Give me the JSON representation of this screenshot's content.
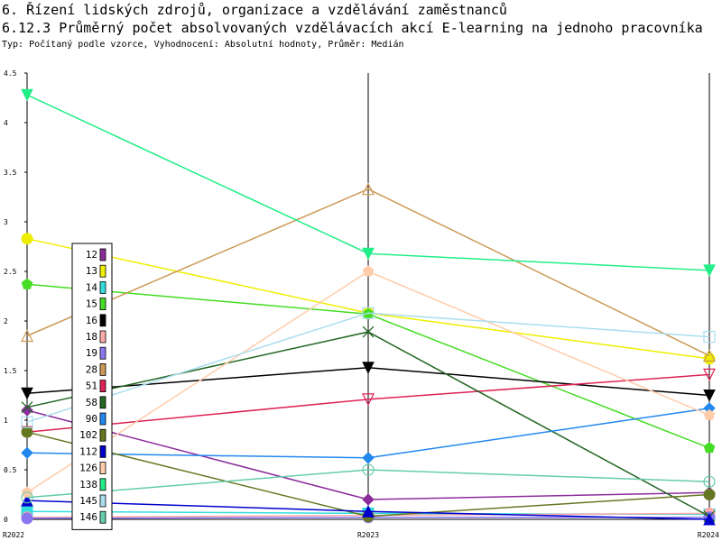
{
  "header": {
    "title1": "6. Řízení lidských zdrojů, organizace a vzdělávání zaměstnanců",
    "title2": "6.12.3 Průměrný počet absolvovaných vzdělávacích akcí E-learning na jednoho pracovníka",
    "subtitle": "Typ: Počítaný podle vzorce, Vyhodnocení: Absolutní hodnoty, Průměr: Medián"
  },
  "chart_data": {
    "type": "line",
    "categories": [
      "R2022",
      "R2023",
      "R2024"
    ],
    "ylim": [
      0,
      4.5
    ],
    "yticks": [
      "0",
      "0.5",
      "1",
      "1.5",
      "2",
      "2.5",
      "3",
      "3.5",
      "4",
      "4.5"
    ],
    "grid": false,
    "legend_position": "left-inside",
    "series": [
      {
        "name": "12",
        "color": "#8B2D9B",
        "marker": "diamond",
        "values": [
          1.1,
          0.2,
          0.27
        ]
      },
      {
        "name": "13",
        "color": "#EEEE00",
        "marker": "circle",
        "values": [
          2.83,
          2.08,
          1.62
        ]
      },
      {
        "name": "14",
        "color": "#33DDDD",
        "marker": "square",
        "values": [
          0.08,
          0.06,
          0.05
        ]
      },
      {
        "name": "15",
        "color": "#44DD22",
        "marker": "pentagon",
        "values": [
          2.37,
          2.07,
          0.72
        ]
      },
      {
        "name": "16",
        "color": "#000000",
        "marker": "triangle-down",
        "values": [
          1.27,
          1.53,
          1.25
        ]
      },
      {
        "name": "18",
        "color": "#FFAAAA",
        "marker": "circle",
        "values": [
          0.02,
          0.04,
          0.06
        ]
      },
      {
        "name": "19",
        "color": "#8877EE",
        "marker": "circle",
        "values": [
          0.01,
          0.02,
          0.02
        ]
      },
      {
        "name": "28",
        "color": "#CC9955",
        "marker": "triangle-up-open",
        "values": [
          1.85,
          3.33,
          1.65
        ]
      },
      {
        "name": "51",
        "color": "#DD2255",
        "marker": "triangle-down-open",
        "values": [
          0.88,
          1.21,
          1.46
        ]
      },
      {
        "name": "58",
        "color": "#226622",
        "marker": "x",
        "values": [
          1.13,
          1.89,
          0.03
        ]
      },
      {
        "name": "90",
        "color": "#2288EE",
        "marker": "diamond",
        "values": [
          0.67,
          0.62,
          1.12
        ]
      },
      {
        "name": "102",
        "color": "#667722",
        "marker": "circle",
        "values": [
          0.88,
          0.03,
          0.25
        ]
      },
      {
        "name": "112",
        "color": "#0000CC",
        "marker": "triangle-up",
        "values": [
          0.19,
          0.08,
          0.0
        ]
      },
      {
        "name": "126",
        "color": "#FFCCAA",
        "marker": "pentagon",
        "values": [
          0.27,
          2.5,
          1.05
        ]
      },
      {
        "name": "138",
        "color": "#22EE88",
        "marker": "triangle-down",
        "values": [
          4.28,
          2.68,
          2.51
        ]
      },
      {
        "name": "145",
        "color": "#AADDEE",
        "marker": "square-open",
        "values": [
          0.98,
          2.08,
          1.84
        ]
      },
      {
        "name": "146",
        "color": "#66CCAA",
        "marker": "circle-open",
        "values": [
          0.22,
          0.5,
          0.38
        ]
      }
    ]
  }
}
